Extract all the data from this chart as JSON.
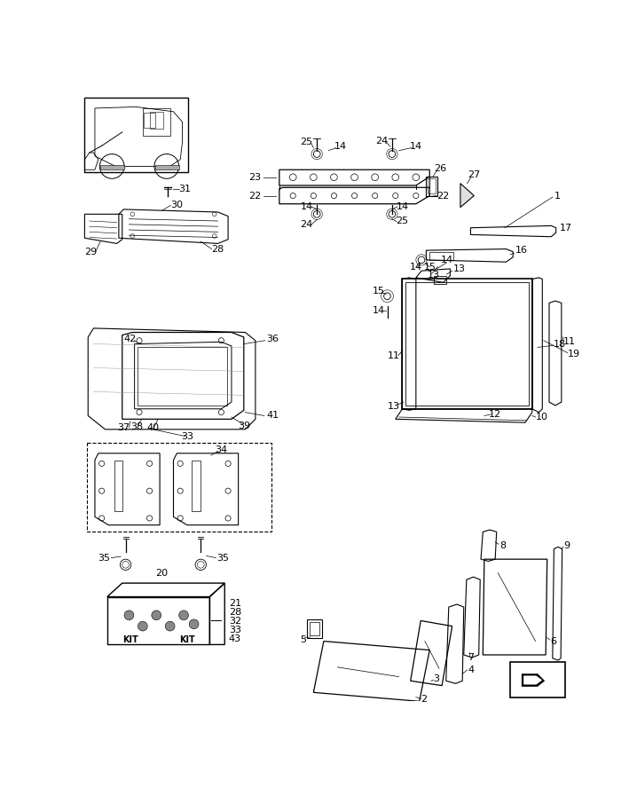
{
  "bg": "#ffffff",
  "lc": "#000000",
  "fig_w": 7.18,
  "fig_h": 8.88,
  "dpi": 100
}
